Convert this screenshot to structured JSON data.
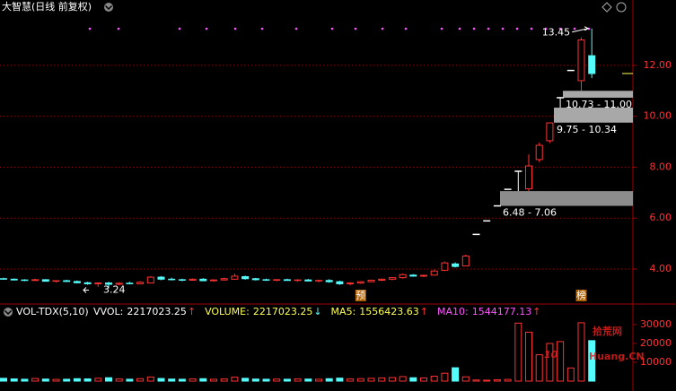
{
  "chart_data": {
    "type": "candlestick",
    "title": "大智慧(日线 前复权)",
    "ylim": [
      2.66,
      14.04
    ],
    "yticks": [
      {
        "value": 4,
        "label": "4.00"
      },
      {
        "value": 6,
        "label": "6.00"
      },
      {
        "value": 8,
        "label": "8.00"
      },
      {
        "value": 10,
        "label": "10.00"
      },
      {
        "value": 12,
        "label": "12.00"
      }
    ],
    "grid": true,
    "up_color": "#ff3232",
    "down_color": "#54fcfc",
    "flat_color": "#ffffff",
    "candles": [
      [
        3.62,
        3.66,
        3.58,
        3.6
      ],
      [
        3.6,
        3.63,
        3.55,
        3.57
      ],
      [
        3.57,
        3.6,
        3.52,
        3.55
      ],
      [
        3.55,
        3.62,
        3.53,
        3.58
      ],
      [
        3.58,
        3.6,
        3.5,
        3.52
      ],
      [
        3.52,
        3.56,
        3.48,
        3.54
      ],
      [
        3.54,
        3.58,
        3.5,
        3.51
      ],
      [
        3.51,
        3.55,
        3.44,
        3.46
      ],
      [
        3.46,
        3.5,
        3.38,
        3.42
      ],
      [
        3.42,
        3.48,
        3.3,
        3.45
      ],
      [
        3.45,
        3.5,
        3.24,
        3.4
      ],
      [
        3.4,
        3.48,
        3.36,
        3.44
      ],
      [
        3.44,
        3.5,
        3.4,
        3.42
      ],
      [
        3.42,
        3.52,
        3.4,
        3.48
      ],
      [
        3.45,
        3.72,
        3.44,
        3.68
      ],
      [
        3.68,
        3.72,
        3.56,
        3.6
      ],
      [
        3.6,
        3.66,
        3.55,
        3.58
      ],
      [
        3.58,
        3.62,
        3.52,
        3.56
      ],
      [
        3.56,
        3.63,
        3.54,
        3.6
      ],
      [
        3.6,
        3.64,
        3.52,
        3.54
      ],
      [
        3.54,
        3.6,
        3.5,
        3.57
      ],
      [
        3.57,
        3.66,
        3.55,
        3.62
      ],
      [
        3.6,
        3.82,
        3.58,
        3.72
      ],
      [
        3.7,
        3.74,
        3.58,
        3.62
      ],
      [
        3.62,
        3.65,
        3.55,
        3.58
      ],
      [
        3.58,
        3.62,
        3.53,
        3.56
      ],
      [
        3.56,
        3.6,
        3.52,
        3.58
      ],
      [
        3.58,
        3.62,
        3.54,
        3.55
      ],
      [
        3.55,
        3.6,
        3.5,
        3.57
      ],
      [
        3.57,
        3.61,
        3.52,
        3.53
      ],
      [
        3.53,
        3.58,
        3.48,
        3.55
      ],
      [
        3.55,
        3.6,
        3.46,
        3.5
      ],
      [
        3.5,
        3.54,
        3.38,
        3.42
      ],
      [
        3.42,
        3.48,
        3.36,
        3.45
      ],
      [
        3.45,
        3.52,
        3.42,
        3.5
      ],
      [
        3.5,
        3.58,
        3.48,
        3.56
      ],
      [
        3.56,
        3.62,
        3.52,
        3.6
      ],
      [
        3.6,
        3.68,
        3.56,
        3.66
      ],
      [
        3.66,
        3.82,
        3.62,
        3.78
      ],
      [
        3.76,
        3.8,
        3.7,
        3.72
      ],
      [
        3.72,
        3.78,
        3.68,
        3.75
      ],
      [
        3.76,
        3.98,
        3.74,
        3.92
      ],
      [
        3.95,
        4.3,
        3.92,
        4.24
      ],
      [
        4.2,
        4.26,
        4.06,
        4.1
      ],
      [
        4.12,
        4.56,
        4.1,
        4.51
      ],
      [
        5.36,
        5.36,
        5.36,
        5.36
      ],
      [
        5.89,
        5.89,
        5.89,
        5.89
      ],
      [
        6.48,
        6.48,
        6.48,
        6.48
      ],
      [
        7.13,
        7.13,
        7.13,
        7.13
      ],
      [
        7.84,
        7.84,
        7.06,
        7.84
      ],
      [
        7.15,
        8.5,
        7.06,
        8.05
      ],
      [
        8.3,
        8.96,
        8.2,
        8.86
      ],
      [
        9.04,
        9.75,
        8.95,
        9.74
      ],
      [
        10.73,
        10.73,
        10.34,
        10.73
      ],
      [
        11.8,
        11.8,
        11.8,
        11.8
      ],
      [
        11.4,
        13.1,
        11.0,
        13.0
      ],
      [
        12.38,
        13.45,
        11.5,
        11.68
      ]
    ],
    "gaps": [
      {
        "low": 6.48,
        "high": 7.06,
        "label": "6.48 - 7.06",
        "color": "#8c8c8c"
      },
      {
        "low": 9.75,
        "high": 10.34,
        "label": "9.75 - 10.34",
        "color": "#a8a8a8"
      },
      {
        "low": 10.73,
        "high": 11.0,
        "label": "10.73 - 11.00",
        "color": "#a8a8a8"
      }
    ],
    "markers": [
      "预",
      "榜"
    ],
    "volume": {
      "header": "VOL-TDX(5,10)",
      "indicators": [
        {
          "name": "VVOL:",
          "value": "2217023.25",
          "arrow": "↑",
          "color": "#ffffff",
          "arrow_color": "#ff3232"
        },
        {
          "name": "VOLUME:",
          "value": "2217023.25",
          "arrow": "↓",
          "color": "#ffff54",
          "arrow_color": "#54fcfc"
        },
        {
          "name": "MA5:",
          "value": "1556423.63",
          "arrow": "↑",
          "color": "#ffff54",
          "arrow_color": "#ff3232"
        },
        {
          "name": "MA10:",
          "value": "1544177.13",
          "arrow": "↑",
          "color": "#ff54ff",
          "arrow_color": "#ff3232"
        }
      ],
      "ylim": [
        -5240,
        33330
      ],
      "yticks": [
        10000,
        20000,
        30000
      ],
      "values": [
        1500,
        1200,
        1000,
        1400,
        1100,
        900,
        1000,
        1300,
        1200,
        1500,
        1800,
        1200,
        1000,
        1300,
        2200,
        1400,
        1100,
        1000,
        1200,
        1300,
        1000,
        1200,
        2100,
        1500,
        1100,
        1000,
        1100,
        1000,
        1200,
        1100,
        1000,
        1300,
        1600,
        1200,
        1300,
        1500,
        1700,
        1900,
        2400,
        1800,
        1700,
        2600,
        4200,
        7100,
        2300,
        600,
        500,
        700,
        900,
        30800,
        26000,
        14000,
        20000,
        21000,
        7000,
        31000,
        21500
      ]
    },
    "watermark": {
      "number": "10",
      "cn": "拾荒网",
      "en": "Huang.CN"
    }
  }
}
